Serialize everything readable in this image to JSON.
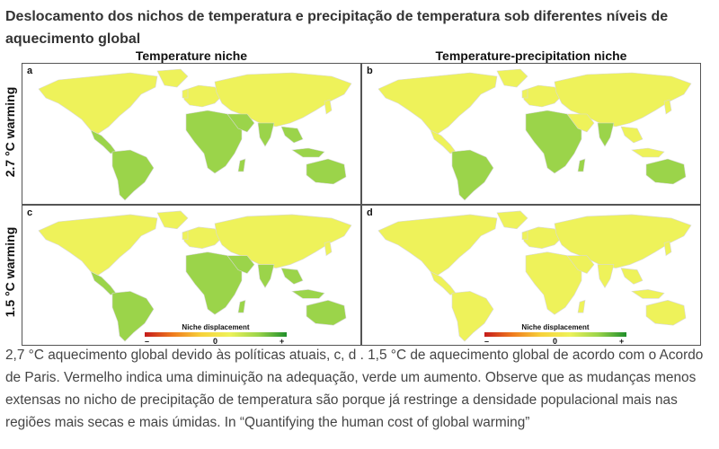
{
  "page": {
    "title": "Deslocamento dos nichos de temperatura e precipitação de temperatura sob diferentes níveis de aquecimento global",
    "caption": "2,7 °C aquecimento global devido às políticas atuais, c, d . 1,5 °C de aquecimento global de acordo com o Acordo de Paris. Vermelho indica uma diminuição na adequação, verde um aumento. Observe que as mudanças menos extensas no nicho de precipitação de temperatura são porque já restringe a densidade populacional mais nas regiões mais secas e mais úmidas. In “Quantifying the human cost of global warming”"
  },
  "figure": {
    "col_headers": [
      "Temperature niche",
      "Temperature-precipitation niche"
    ],
    "row_labels": [
      "2.7 °C warming",
      "1.5 °C warming"
    ],
    "panels": [
      {
        "label": "a",
        "row": 0,
        "col": 0,
        "intensity": 1.0
      },
      {
        "label": "b",
        "row": 0,
        "col": 1,
        "intensity": 0.55
      },
      {
        "label": "c",
        "row": 1,
        "col": 0,
        "intensity": 0.7
      },
      {
        "label": "d",
        "row": 1,
        "col": 1,
        "intensity": 0.35
      }
    ],
    "legend": {
      "title": "Niche displacement",
      "minus": "–",
      "zero": "0",
      "plus": "+",
      "colors": [
        "#c51b1b",
        "#f07c1e",
        "#f7d23b",
        "#eef25a",
        "#9bd44a",
        "#1f8f2a"
      ]
    }
  }
}
